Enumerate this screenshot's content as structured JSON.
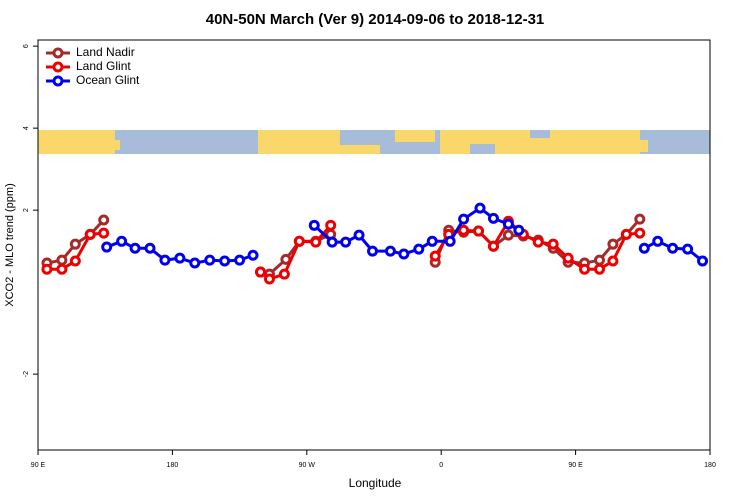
{
  "chart_data": {
    "type": "line",
    "title": "40N-50N March (Ver 9)   2014-09-06 to 2018-12-31",
    "x_label": "Longitude",
    "y_label": "XCO2 - MLO trend (ppm)",
    "xlim": [
      90,
      540
    ],
    "xticks": [
      {
        "value": 90,
        "label": "90 E"
      },
      180,
      {
        "value": 270,
        "label": "90 W"
      },
      {
        "value": 360,
        "label": "0"
      },
      {
        "value": 450,
        "label": "90 E"
      },
      {
        "value": 540,
        "label": "180"
      }
    ],
    "ylim": [
      -3.85,
      6.15
    ],
    "yticks": [
      6,
      4,
      2,
      -2
    ],
    "legend": "top-left",
    "series": [
      {
        "name": "Land Nadir",
        "color": "#a52a2a",
        "x": [
          96,
          106,
          115,
          125,
          134,
          186,
          239,
          245,
          256,
          265,
          276,
          286,
          321,
          356,
          365,
          375,
          385,
          395,
          405,
          415,
          425,
          435,
          445,
          456,
          466,
          475,
          484,
          493
        ],
        "values": [
          0.71,
          0.78,
          1.17,
          1.41,
          1.76,
          null,
          0.49,
          0.44,
          0.8,
          1.24,
          1.24,
          1.41,
          null,
          0.73,
          1.51,
          1.46,
          1.49,
          1.12,
          1.39,
          1.37,
          1.27,
          1.07,
          0.73,
          0.71,
          0.78,
          1.17,
          1.41,
          1.78
        ]
      },
      {
        "name": "Land Glint",
        "color": "#ee0000",
        "x": [
          96,
          106,
          115,
          125,
          134,
          186,
          239,
          245,
          255,
          265,
          276,
          286,
          321,
          356,
          365,
          375,
          385,
          395,
          405,
          415,
          425,
          435,
          445,
          456,
          466,
          475,
          484,
          493
        ],
        "values": [
          0.56,
          0.56,
          0.76,
          1.41,
          1.44,
          null,
          0.49,
          0.32,
          0.44,
          1.24,
          1.22,
          1.63,
          null,
          0.88,
          1.41,
          1.51,
          1.49,
          1.12,
          1.73,
          1.41,
          1.22,
          1.17,
          0.83,
          0.56,
          0.56,
          0.76,
          1.41,
          1.44
        ]
      },
      {
        "name": "Ocean Glint",
        "color": "#0000ee",
        "x": [
          136,
          146,
          155,
          165,
          175,
          185,
          195,
          205,
          215,
          225,
          234,
          255,
          275,
          287,
          296,
          305,
          314,
          326,
          335,
          345,
          354,
          366,
          375,
          386,
          395,
          405,
          412,
          454,
          496,
          505,
          515,
          525,
          535
        ],
        "values": [
          1.1,
          1.24,
          1.07,
          1.07,
          0.78,
          0.83,
          0.71,
          0.78,
          0.76,
          0.78,
          0.9,
          null,
          1.63,
          1.22,
          1.22,
          1.39,
          1.0,
          1.0,
          0.93,
          1.05,
          1.24,
          1.24,
          1.78,
          2.05,
          1.8,
          1.66,
          1.51,
          null,
          1.07,
          1.24,
          1.07,
          1.05,
          0.76
        ]
      }
    ]
  }
}
